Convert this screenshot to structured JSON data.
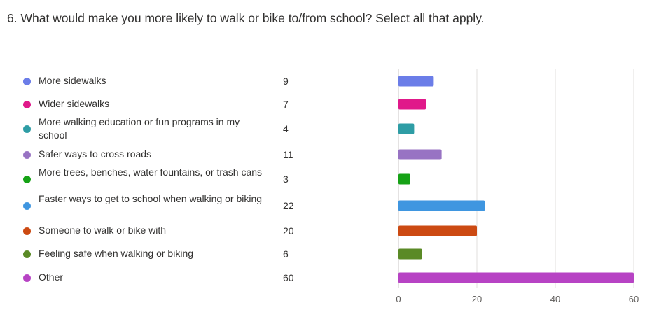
{
  "question": "6. What would make you more likely to walk or bike to/from school? Select all that apply.",
  "chart_data": {
    "type": "bar",
    "orientation": "horizontal",
    "categories": [
      "More sidewalks",
      "Wider sidewalks",
      "More walking education or fun programs in my school",
      "Safer ways to cross roads",
      "More trees, benches, water fountains, or trash cans",
      "Faster ways to get to school when walking or biking",
      "Someone to walk or bike with",
      "Feeling safe when walking or biking",
      "Other"
    ],
    "values": [
      9,
      7,
      4,
      11,
      3,
      22,
      20,
      6,
      60
    ],
    "colors": [
      "#6b7de8",
      "#e0198a",
      "#2e9da5",
      "#9873c3",
      "#16a216",
      "#3f96e0",
      "#cc4a12",
      "#5a8a26",
      "#b743c4"
    ],
    "xlim": [
      0,
      60
    ],
    "xticks": [
      0,
      20,
      40,
      60
    ],
    "grid": true,
    "title": "",
    "xlabel": "",
    "ylabel": ""
  }
}
